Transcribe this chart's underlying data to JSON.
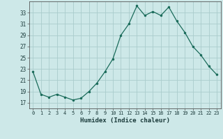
{
  "x": [
    0,
    1,
    2,
    3,
    4,
    5,
    6,
    7,
    8,
    9,
    10,
    11,
    12,
    13,
    14,
    15,
    16,
    17,
    18,
    19,
    20,
    21,
    22,
    23
  ],
  "y": [
    22.5,
    18.5,
    18.0,
    18.5,
    18.0,
    17.5,
    17.8,
    19.0,
    20.5,
    22.5,
    24.8,
    29.0,
    31.0,
    34.2,
    32.5,
    33.2,
    32.5,
    34.0,
    31.5,
    29.5,
    27.0,
    25.5,
    23.5,
    22.0
  ],
  "line_color": "#1a6b5a",
  "marker": ".",
  "bg_color": "#cde8e8",
  "grid_color": "#aacccc",
  "xlabel": "Humidex (Indice chaleur)",
  "ylabel_ticks": [
    17,
    19,
    21,
    23,
    25,
    27,
    29,
    31,
    33
  ],
  "xlim": [
    -0.5,
    23.5
  ],
  "ylim": [
    16.0,
    35.0
  ]
}
